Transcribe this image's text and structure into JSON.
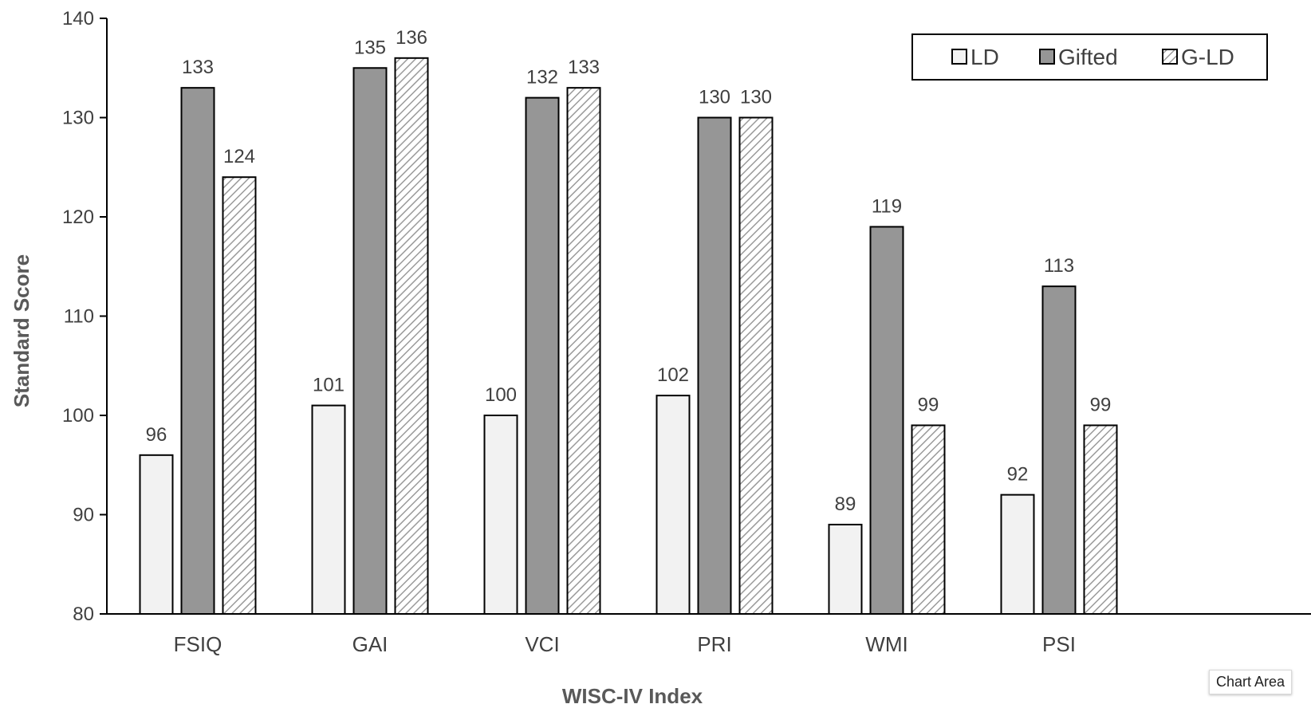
{
  "chart_data": {
    "type": "bar",
    "categories": [
      "FSIQ",
      "GAI",
      "VCI",
      "PRI",
      "WMI",
      "PSI"
    ],
    "series": [
      {
        "name": "LD",
        "values": [
          96,
          101,
          100,
          102,
          89,
          92
        ],
        "fill": "#f2f2f2",
        "pattern": "solid"
      },
      {
        "name": "Gifted",
        "values": [
          133,
          135,
          132,
          130,
          119,
          113
        ],
        "fill": "#969696",
        "pattern": "solid"
      },
      {
        "name": "G-LD",
        "values": [
          124,
          136,
          133,
          130,
          99,
          99
        ],
        "fill": "#ffffff",
        "pattern": "diagonal-hatch"
      }
    ],
    "xlabel": "WISC-IV Index",
    "ylabel": "Standard Score",
    "ylim": [
      80,
      140
    ],
    "yticks": [
      80,
      90,
      100,
      110,
      120,
      130,
      140
    ],
    "grid": false,
    "legend": {
      "position": "top-right",
      "box": true
    },
    "data_labels": true
  },
  "tooltip": {
    "label": "Chart Area"
  }
}
